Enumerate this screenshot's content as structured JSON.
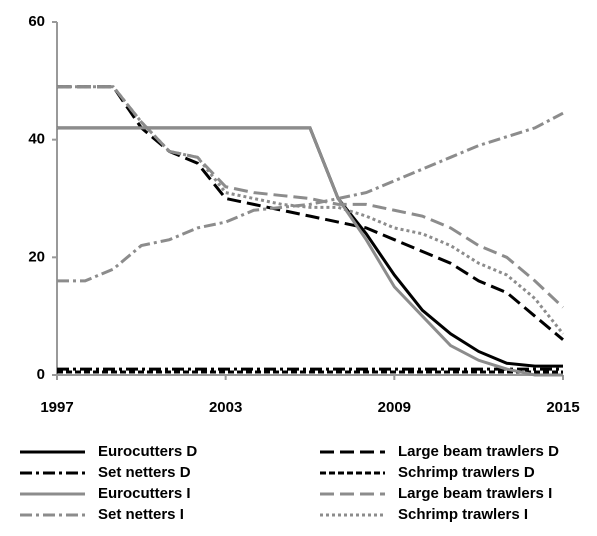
{
  "chart_data": {
    "type": "line",
    "x": [
      1997,
      1998,
      1999,
      2000,
      2001,
      2002,
      2003,
      2004,
      2005,
      2006,
      2007,
      2008,
      2009,
      2010,
      2011,
      2012,
      2013,
      2014,
      2015
    ],
    "xlim": [
      1997,
      2015
    ],
    "xticks": [
      1997,
      2003,
      2009,
      2015
    ],
    "ylim": [
      0,
      60
    ],
    "yticks": [
      0,
      20,
      40,
      60
    ],
    "series": [
      {
        "name": "Eurocutters D",
        "color": "#000000",
        "dash": "solid",
        "values": [
          42,
          42,
          42,
          42,
          42,
          42,
          42,
          42,
          42,
          42,
          30,
          24,
          17,
          11,
          7,
          4,
          2,
          1.5,
          1.5
        ]
      },
      {
        "name": "Large beam trawlers D",
        "color": "#000000",
        "dash": "dash",
        "values": [
          49,
          49,
          49,
          42,
          38,
          36,
          30,
          29,
          28,
          27,
          26,
          25,
          23,
          21,
          19,
          16,
          14,
          10,
          6
        ]
      },
      {
        "name": "Set netters D",
        "color": "#000000",
        "dash": "dashdot",
        "values": [
          1,
          1,
          1,
          1,
          1,
          1,
          1,
          1,
          1,
          1,
          1,
          1,
          1,
          1,
          1,
          1,
          1,
          1,
          1
        ]
      },
      {
        "name": "Schrimp trawlers D",
        "color": "#000000",
        "dash": "shortdash",
        "values": [
          0.5,
          0.5,
          0.5,
          0.5,
          0.5,
          0.5,
          0.5,
          0.5,
          0.5,
          0.5,
          0.5,
          0.5,
          0.5,
          0.5,
          0.5,
          0.5,
          0.5,
          0.5,
          0.5
        ]
      },
      {
        "name": "Eurocutters I",
        "color": "#8c8c8c",
        "dash": "solid",
        "values": [
          42,
          42,
          42,
          42,
          42,
          42,
          42,
          42,
          42,
          42,
          30,
          23,
          15,
          10,
          5,
          2.5,
          1,
          0,
          0
        ]
      },
      {
        "name": "Large beam trawlers I",
        "color": "#8c8c8c",
        "dash": "dash",
        "values": [
          49,
          49,
          49,
          43,
          38,
          37,
          32,
          31,
          30.5,
          30,
          29,
          29,
          28,
          27,
          25,
          22,
          20,
          16,
          11.5
        ]
      },
      {
        "name": "Set netters I",
        "color": "#8c8c8c",
        "dash": "dashdot",
        "values": [
          16,
          16,
          18,
          22,
          23,
          25,
          26,
          28,
          28.5,
          29,
          30,
          31,
          33,
          35,
          37,
          39,
          40.5,
          42,
          44.5
        ]
      },
      {
        "name": "Schrimp trawlers I",
        "color": "#8c8c8c",
        "dash": "dot",
        "values": [
          49,
          49,
          49,
          43,
          38,
          37,
          31,
          30,
          29,
          28.5,
          28.5,
          27,
          25,
          24,
          22,
          19,
          17,
          13,
          7
        ]
      }
    ]
  }
}
